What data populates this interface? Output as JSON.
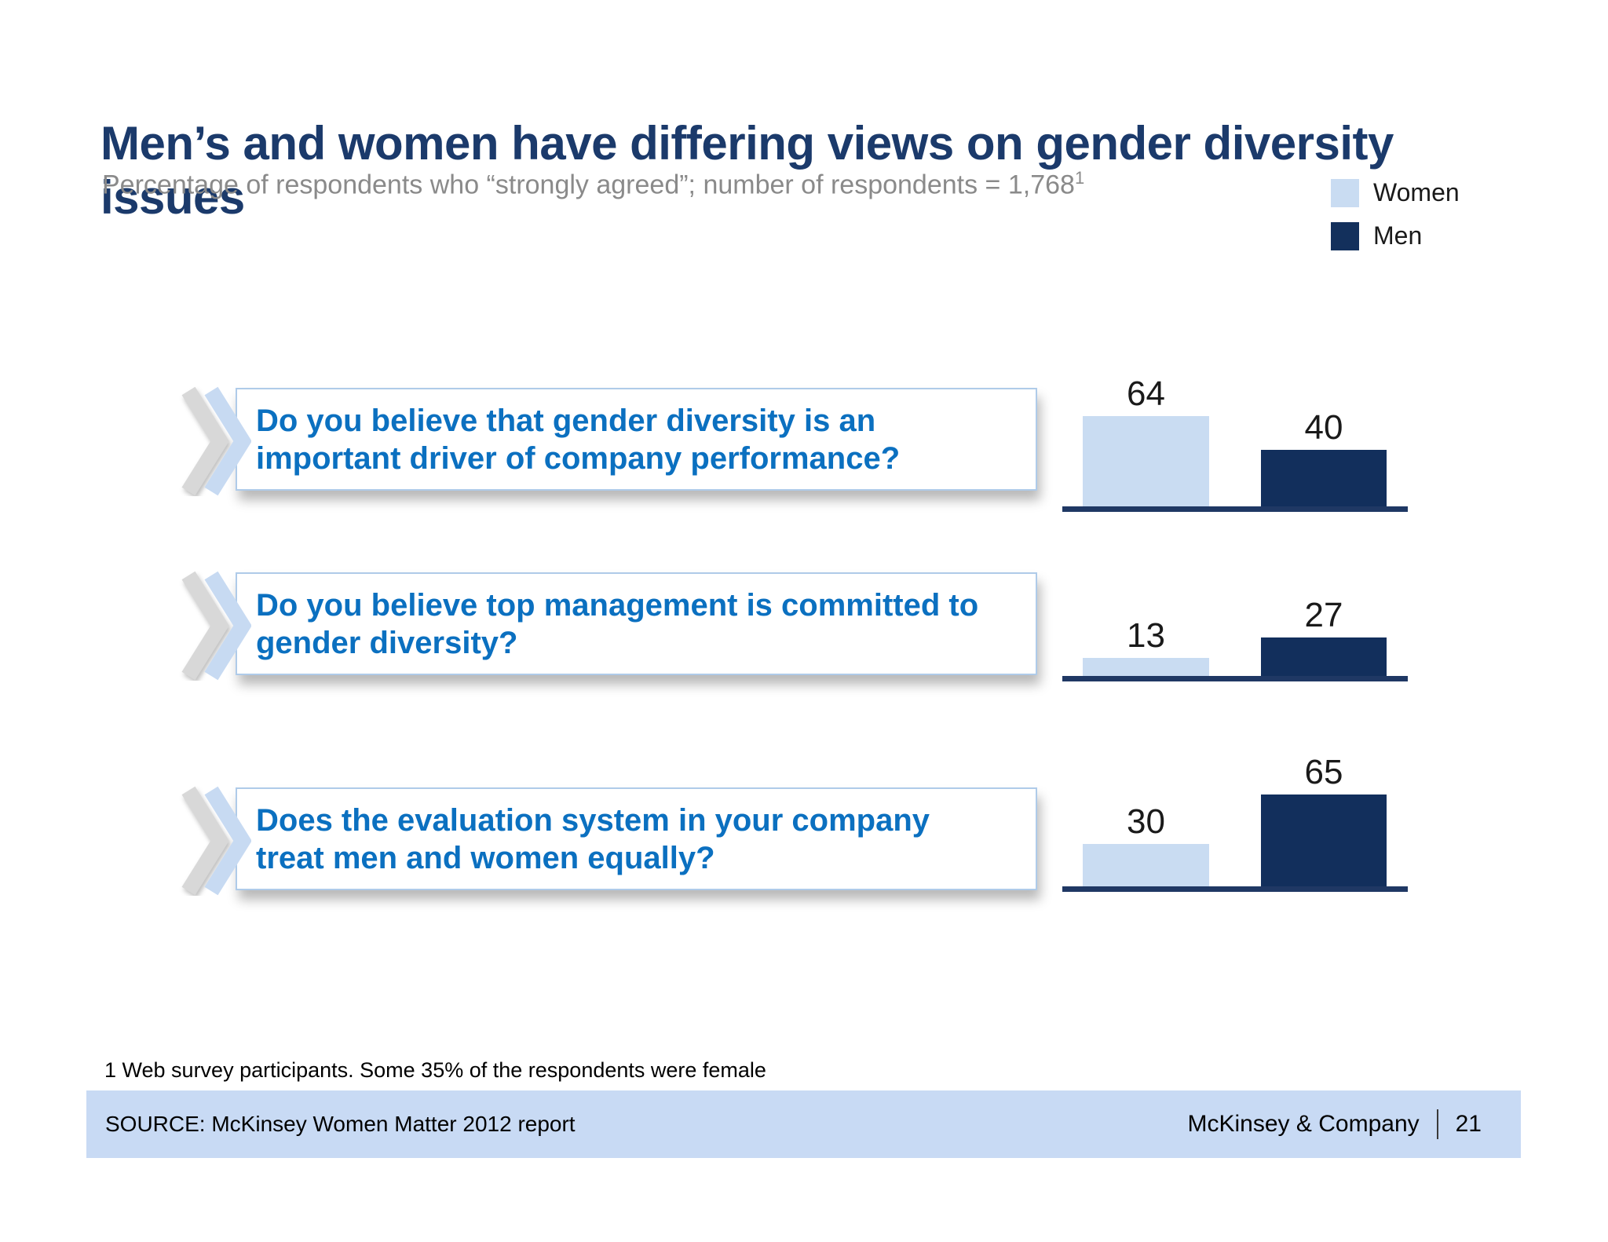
{
  "header": {
    "title": "Men’s and women have differing views on gender diversity issues",
    "subtitle_main": "Percentage of respondents who “strongly agreed”; number of respondents = 1,768",
    "subtitle_superscript": "1"
  },
  "legend": {
    "women_label": "Women",
    "men_label": "Men"
  },
  "chart_data": {
    "type": "bar",
    "title": "Men’s and women have differing views on gender diversity issues",
    "subtitle": "Percentage of respondents who “strongly agreed”; number of respondents = 1,768",
    "unit": "percent of respondents who strongly agreed",
    "n_respondents": "1,768",
    "legend_position": "top-right",
    "axes_shown": false,
    "value_labels_shown": true,
    "categories": [
      "Do you believe that gender diversity is an important driver of company performance?",
      "Do you believe top management is committed to gender diversity?",
      "Does the evaluation system in your company treat men and women equally?"
    ],
    "series": [
      {
        "name": "Women",
        "values": [
          64,
          13,
          30
        ]
      },
      {
        "name": "Men",
        "values": [
          40,
          27,
          65
        ]
      }
    ],
    "rows": [
      {
        "line1": "Do you believe that gender diversity is an",
        "line2": "important driver of company performance?",
        "women": 64,
        "men": 40
      },
      {
        "line1": "Do you believe top management is committed to",
        "line2": "gender diversity?",
        "women": 13,
        "men": 27
      },
      {
        "line1": "Does the evaluation system in your company",
        "line2": "treat men and women equally?",
        "women": 30,
        "men": 65
      }
    ]
  },
  "colors": {
    "title_navy": "#1B3A6B",
    "subtitle_gray": "#8A8A8A",
    "question_blue": "#0B70C0",
    "bar_women_light_blue": "#C9DCF2",
    "bar_men_dark_navy": "#122F5C",
    "baseline_navy": "#1F3864",
    "box_border_blue": "#AFCBE9",
    "chevron_gray": "#D8D8D8",
    "chevron_blue": "#C7DAF2",
    "footer_bar_blue": "#C8DAF4"
  },
  "footnote": "1 Web survey participants. Some 35% of the respondents were female",
  "footer": {
    "source": "SOURCE: McKinsey Women Matter 2012 report",
    "company": "McKinsey & Company",
    "page_number": "21"
  }
}
